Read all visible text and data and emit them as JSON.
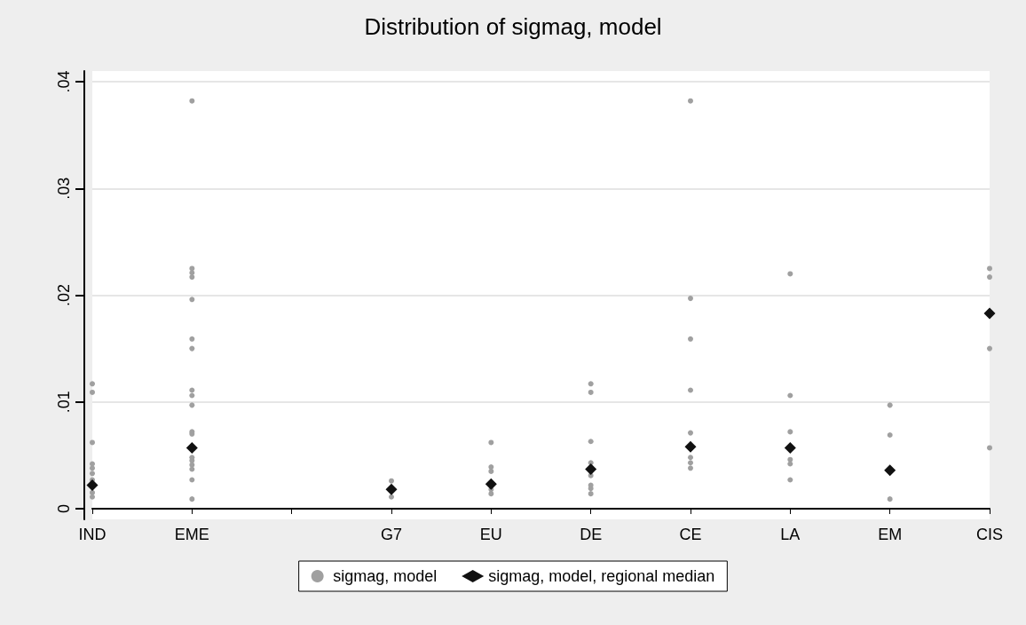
{
  "chart_data": {
    "type": "scatter",
    "title": "Distribution of sigmag, model",
    "categories": [
      "IND",
      "EME",
      null,
      "G7",
      "EU",
      "DE",
      "CE",
      "LA",
      "EM",
      "CIS"
    ],
    "series": [
      {
        "name": "sigmag, model",
        "color": "#a0a0a0",
        "marker": "circle",
        "x": [
          "IND",
          "IND",
          "IND",
          "IND",
          "IND",
          "IND",
          "IND",
          "IND",
          "IND",
          "EME",
          "EME",
          "EME",
          "EME",
          "EME",
          "EME",
          "EME",
          "EME",
          "EME",
          "EME",
          "EME",
          "EME",
          "EME",
          "EME",
          "EME",
          "EME",
          "EME",
          "EME",
          "G7",
          "G7",
          "EU",
          "EU",
          "EU",
          "EU",
          "EU",
          "DE",
          "DE",
          "DE",
          "DE",
          "DE",
          "DE",
          "DE",
          "DE",
          "CE",
          "CE",
          "CE",
          "CE",
          "CE",
          "CE",
          "CE",
          "CE",
          "LA",
          "LA",
          "LA",
          "LA",
          "LA",
          "LA",
          "EM",
          "EM",
          "EM",
          "CIS",
          "CIS",
          "CIS",
          "CIS"
        ],
        "values": [
          0.0117,
          0.0109,
          0.0062,
          0.0042,
          0.0038,
          0.0033,
          0.0027,
          0.0015,
          0.0011,
          0.0382,
          0.0225,
          0.0221,
          0.0217,
          0.0196,
          0.0159,
          0.015,
          0.0111,
          0.0106,
          0.0097,
          0.0072,
          0.007,
          0.0048,
          0.0045,
          0.0041,
          0.0037,
          0.0027,
          0.0009,
          0.0026,
          0.0011,
          0.0062,
          0.0039,
          0.0035,
          0.0018,
          0.0014,
          0.0117,
          0.0109,
          0.0063,
          0.0043,
          0.0031,
          0.0022,
          0.0019,
          0.0014,
          0.0382,
          0.0197,
          0.0159,
          0.0111,
          0.0071,
          0.0048,
          0.0043,
          0.0038,
          0.022,
          0.0106,
          0.0072,
          0.0046,
          0.0042,
          0.0027,
          0.0097,
          0.0069,
          0.0009,
          0.0225,
          0.0217,
          0.015,
          0.0057
        ]
      },
      {
        "name": "sigmag, model, regional median",
        "color": "#111111",
        "marker": "diamond",
        "x": [
          "IND",
          "EME",
          "G7",
          "EU",
          "DE",
          "CE",
          "LA",
          "EM",
          "CIS"
        ],
        "values": [
          0.0022,
          0.0057,
          0.0018,
          0.0023,
          0.0037,
          0.0058,
          0.0057,
          0.0036,
          0.0183
        ]
      }
    ],
    "ylim": [
      -0.001,
      0.041
    ],
    "yticks": [
      0,
      {
        "value": 0.01,
        "label": ".01"
      },
      {
        "value": 0.02,
        "label": ".02"
      },
      {
        "value": 0.03,
        "label": ".03"
      },
      {
        "value": 0.04,
        "label": ".04"
      }
    ],
    "grid": "y",
    "legend": "bottom"
  }
}
